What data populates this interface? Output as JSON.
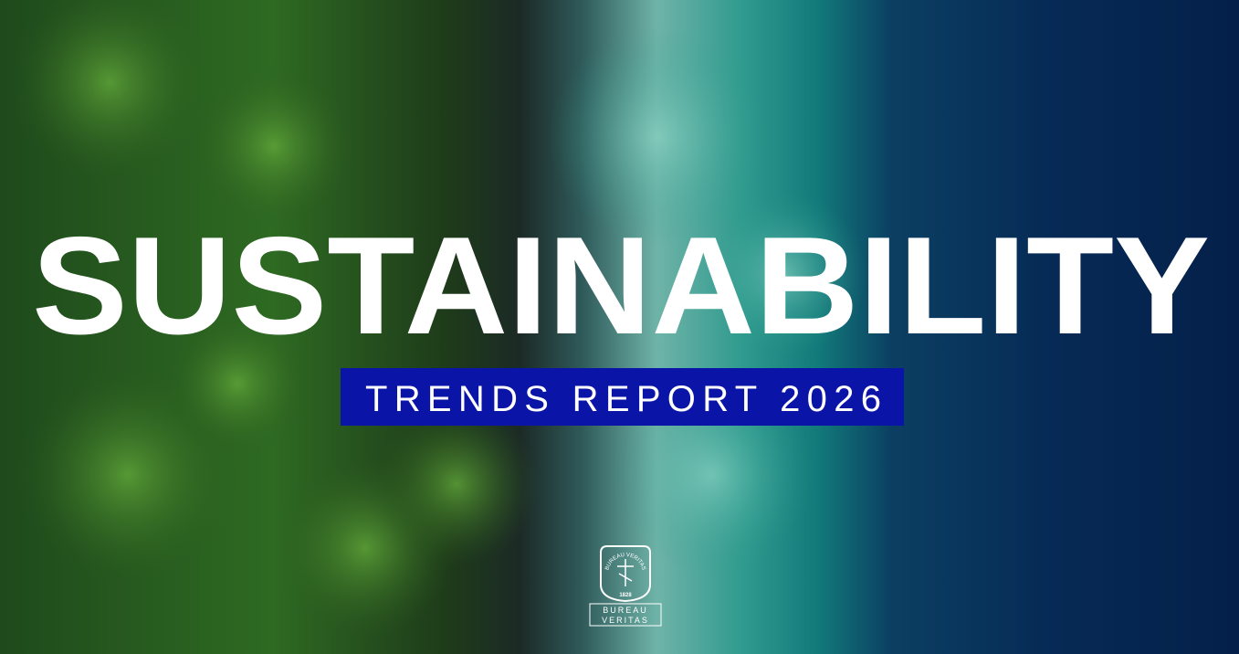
{
  "banner": {
    "title": "SUSTAINABILITY",
    "subtitle": "TRENDS REPORT 2026"
  },
  "logo": {
    "arc_text": "BUREAU VERITAS",
    "year": "1828",
    "name_lines": [
      "BUREAU",
      "VERITAS"
    ]
  }
}
